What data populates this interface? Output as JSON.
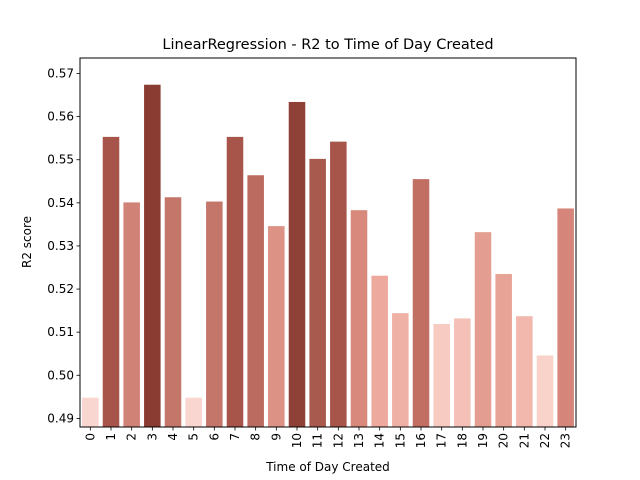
{
  "chart_data": {
    "type": "bar",
    "title": "LinearRegression - R2 to Time of Day Created",
    "xlabel": "Time of Day Created",
    "ylabel": "R2 score",
    "categories": [
      "0",
      "1",
      "2",
      "3",
      "4",
      "5",
      "6",
      "7",
      "8",
      "9",
      "10",
      "11",
      "12",
      "13",
      "14",
      "15",
      "16",
      "17",
      "18",
      "19",
      "20",
      "21",
      "22",
      "23"
    ],
    "values": [
      0.4948,
      0.5553,
      0.5401,
      0.5674,
      0.5413,
      0.4948,
      0.5403,
      0.5553,
      0.5464,
      0.5346,
      0.5634,
      0.5502,
      0.5542,
      0.5383,
      0.5231,
      0.5144,
      0.5455,
      0.5119,
      0.5132,
      0.5332,
      0.5235,
      0.5137,
      0.5046,
      0.5387
    ],
    "ylim": [
      0.488,
      0.5736
    ],
    "yticks": [
      "0.49",
      "0.50",
      "0.51",
      "0.52",
      "0.53",
      "0.54",
      "0.55",
      "0.56",
      "0.57"
    ],
    "ytick_values": [
      0.49,
      0.5,
      0.51,
      0.52,
      0.53,
      0.54,
      0.55,
      0.56,
      0.57
    ],
    "grid": false,
    "colors": [
      "#f9d6cf",
      "#a7554a",
      "#d18276",
      "#8a3b32",
      "#c5766a",
      "#f9d6cf",
      "#c5766a",
      "#a7554a",
      "#bb6b5f",
      "#dc9285",
      "#8f4037",
      "#a85a4e",
      "#a7554a",
      "#d9887c",
      "#eea99e",
      "#efb0a5",
      "#c26f63",
      "#f7cbc2",
      "#f4c0b7",
      "#e39d91",
      "#e8a397",
      "#f2b8ae",
      "#f9d2ca",
      "#d5857a"
    ]
  }
}
